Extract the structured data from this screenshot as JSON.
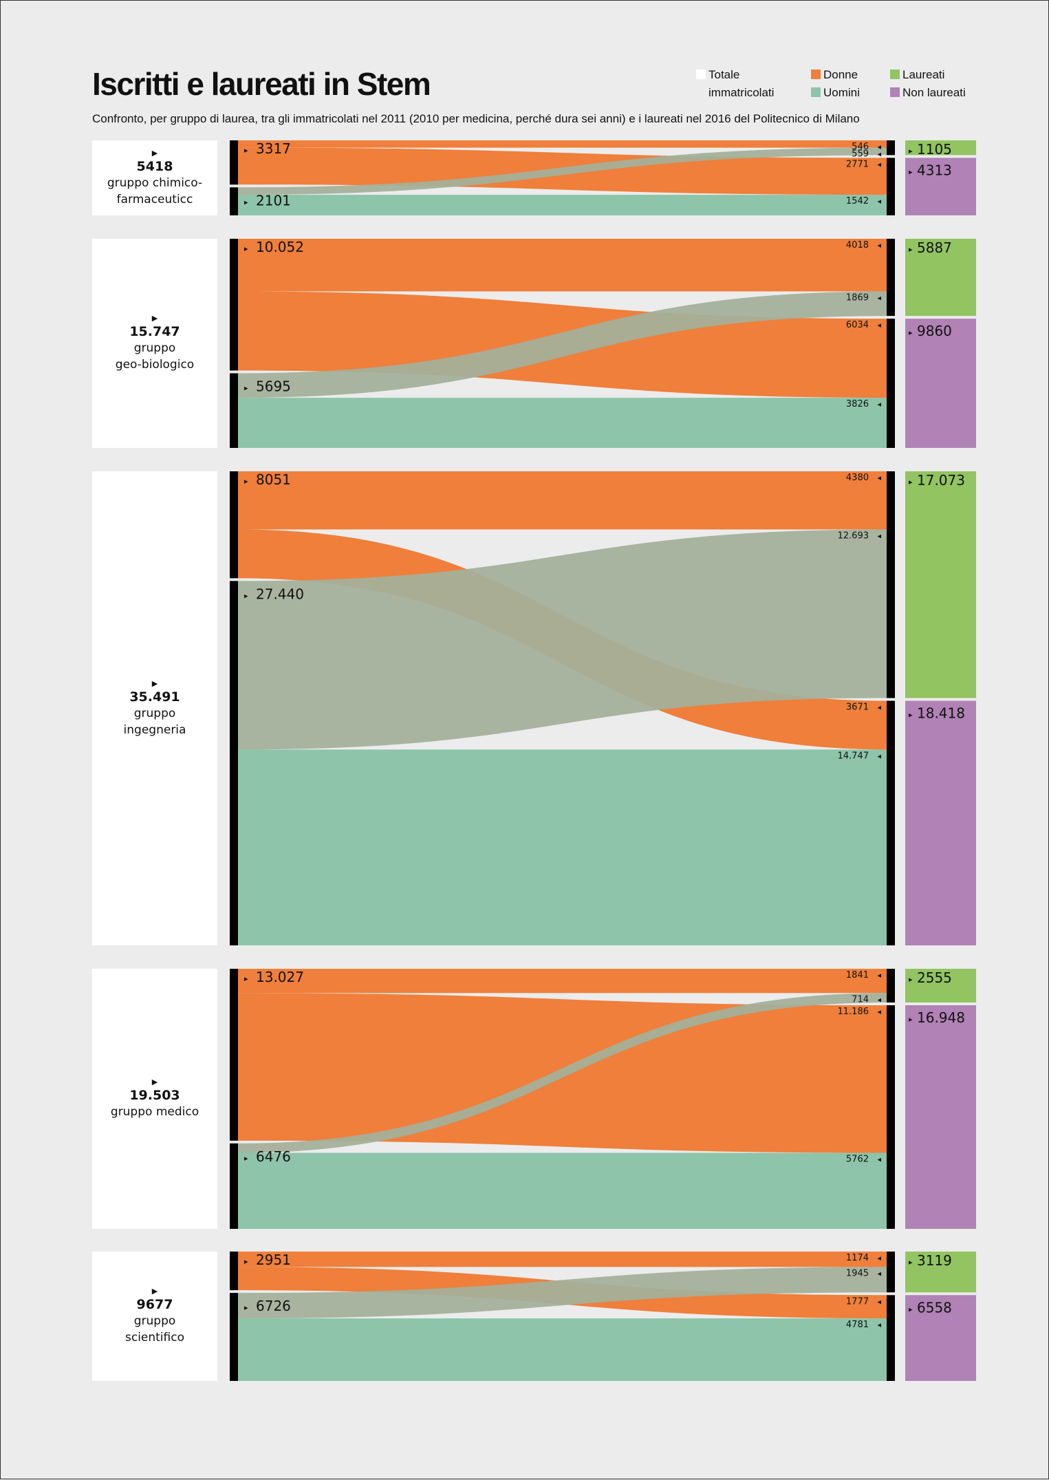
{
  "header": {
    "title": "Iscritti e laureati in Stem",
    "subtitle": "Confronto, per gruppo di laurea, tra gli immatricolati nel 2011 (2010 per medicina, perché dura sei anni) e i laureati nel 2016 del Politecnico di Milano"
  },
  "legend": [
    {
      "label_line1": "Totale",
      "label_line2": "immatricolati",
      "color": "#ffffff"
    },
    {
      "label_line1": "Donne",
      "label_line2": "",
      "color": "#ef7f3b"
    },
    {
      "label_line1": "Uomini",
      "label_line2": "",
      "color": "#8dc4aa"
    },
    {
      "label_line1": "Laureati",
      "label_line2": "",
      "color": "#92c462"
    },
    {
      "label_line1": "Non laureati",
      "label_line2": "",
      "color": "#b082b5"
    }
  ],
  "colors": {
    "donne": "#ef7f3b",
    "uomini": "#8dc4aa",
    "overlap": "#b3a390",
    "laureati": "#92c462",
    "non_laureati": "#b082b5",
    "bar": "#000000",
    "total_box": "#ffffff"
  },
  "chart_data": {
    "type": "sankey",
    "title": "Iscritti e laureati in Stem",
    "subtitle": "Confronto, per gruppo di laurea, tra gli immatricolati nel 2011 (2010 per medicina, perché dura sei anni) e i laureati nel 2016 del Politecnico di Milano",
    "legend_position": "top-right",
    "groups": [
      {
        "name_lines": [
          "gruppo chimico-",
          "farmaceuticc"
        ],
        "total": 5418,
        "total_label": "5418",
        "donne": 3317,
        "donne_label": "3317",
        "uomini": 2101,
        "uomini_label": "2101",
        "donne_laureate": 546,
        "donne_laureate_label": "546",
        "uomini_laureati": 559,
        "uomini_laureati_label": "559",
        "donne_non_laureate": 2771,
        "donne_non_laureate_label": "2771",
        "uomini_non_laureati": 1542,
        "uomini_non_laureati_label": "1542",
        "laureati": 1105,
        "laureati_label": "1105",
        "non_laureati": 4313,
        "non_laureati_label": "4313"
      },
      {
        "name_lines": [
          "gruppo",
          "geo-biologico"
        ],
        "total": 15747,
        "total_label": "15.747",
        "donne": 10052,
        "donne_label": "10.052",
        "uomini": 5695,
        "uomini_label": "5695",
        "donne_laureate": 4018,
        "donne_laureate_label": "4018",
        "uomini_laureati": 1869,
        "uomini_laureati_label": "1869",
        "donne_non_laureate": 6034,
        "donne_non_laureate_label": "6034",
        "uomini_non_laureati": 3826,
        "uomini_non_laureati_label": "3826",
        "laureati": 5887,
        "laureati_label": "5887",
        "non_laureati": 9860,
        "non_laureati_label": "9860"
      },
      {
        "name_lines": [
          "gruppo",
          "ingegneria"
        ],
        "total": 35491,
        "total_label": "35.491",
        "donne": 8051,
        "donne_label": "8051",
        "uomini": 27440,
        "uomini_label": "27.440",
        "donne_laureate": 4380,
        "donne_laureate_label": "4380",
        "uomini_laureati": 12693,
        "uomini_laureati_label": "12.693",
        "donne_non_laureate": 3671,
        "donne_non_laureate_label": "3671",
        "uomini_non_laureati": 14747,
        "uomini_non_laureati_label": "14.747",
        "laureati": 17073,
        "laureati_label": "17.073",
        "non_laureati": 18418,
        "non_laureati_label": "18.418"
      },
      {
        "name_lines": [
          "gruppo medico"
        ],
        "total": 19503,
        "total_label": "19.503",
        "donne": 13027,
        "donne_label": "13.027",
        "uomini": 6476,
        "uomini_label": "6476",
        "donne_laureate": 1841,
        "donne_laureate_label": "1841",
        "uomini_laureati": 714,
        "uomini_laureati_label": "714",
        "donne_non_laureate": 11186,
        "donne_non_laureate_label": "11.186",
        "uomini_non_laureati": 5762,
        "uomini_non_laureati_label": "5762",
        "laureati": 2555,
        "laureati_label": "2555",
        "non_laureati": 16948,
        "non_laureati_label": "16.948"
      },
      {
        "name_lines": [
          "gruppo",
          "scientifico"
        ],
        "total": 9677,
        "total_label": "9677",
        "donne": 2951,
        "donne_label": "2951",
        "uomini": 6726,
        "uomini_label": "6726",
        "donne_laureate": 1174,
        "donne_laureate_label": "1174",
        "uomini_laureati": 1945,
        "uomini_laureati_label": "1945",
        "donne_non_laureate": 1777,
        "donne_non_laureate_label": "1777",
        "uomini_non_laureati": 4781,
        "uomini_non_laureati_label": "4781",
        "laureati": 3119,
        "laureati_label": "3119",
        "non_laureati": 6558,
        "non_laureati_label": "6558"
      }
    ]
  }
}
